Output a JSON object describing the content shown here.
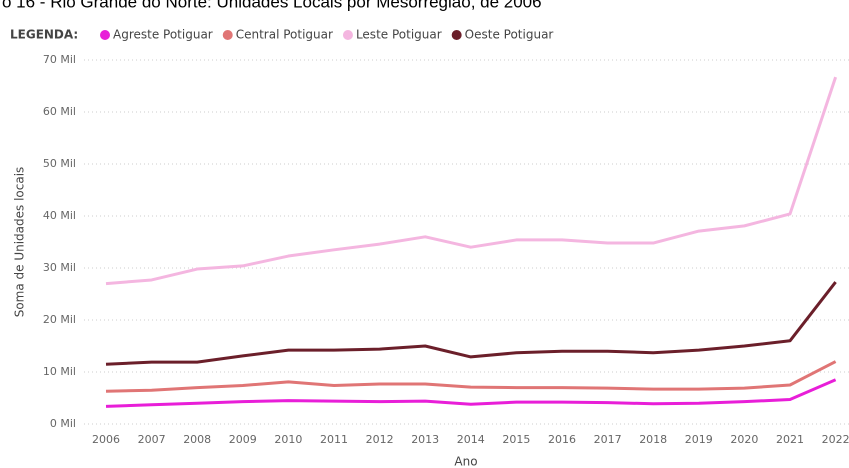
{
  "chart_data": {
    "type": "line",
    "title": "o 16 - Rio Grande do Norte: Unidades Locais por Mesorregião, de 2006",
    "legend_title": "LEGENDA:",
    "x_label": "Ano",
    "y_label": "Soma de Unidades locais",
    "categories": [
      "2006",
      "2007",
      "2008",
      "2009",
      "2010",
      "2011",
      "2012",
      "2013",
      "2014",
      "2015",
      "2016",
      "2017",
      "2018",
      "2019",
      "2020",
      "2021",
      "2022"
    ],
    "series": [
      {
        "name": "Agreste Potiguar",
        "color": "#e81ed8",
        "values": [
          3400,
          3700,
          4000,
          4300,
          4500,
          4400,
          4300,
          4400,
          3800,
          4200,
          4200,
          4100,
          3900,
          4000,
          4300,
          4700,
          8500
        ]
      },
      {
        "name": "Central Potiguar",
        "color": "#e07575",
        "values": [
          6300,
          6500,
          7000,
          7400,
          8100,
          7400,
          7700,
          7700,
          7100,
          7000,
          7000,
          6900,
          6700,
          6700,
          6900,
          7500,
          12000
        ]
      },
      {
        "name": "Leste Potiguar",
        "color": "#f4b6e0",
        "values": [
          27000,
          27700,
          29800,
          30400,
          32300,
          33500,
          34600,
          36000,
          34000,
          35400,
          35400,
          34800,
          34800,
          37100,
          38100,
          40400,
          66700
        ]
      },
      {
        "name": "Oeste Potiguar",
        "color": "#6b1f2a",
        "values": [
          11500,
          11900,
          11900,
          13100,
          14200,
          14200,
          14400,
          15000,
          12900,
          13700,
          14000,
          14000,
          13700,
          14200,
          15000,
          16000,
          27300
        ]
      }
    ],
    "ylim": [
      0,
      70000
    ],
    "yticks": [
      {
        "value": 0,
        "label": "0 Mil"
      },
      {
        "value": 10000,
        "label": "10 Mil"
      },
      {
        "value": 20000,
        "label": "20 Mil"
      },
      {
        "value": 30000,
        "label": "30 Mil"
      },
      {
        "value": 40000,
        "label": "40 Mil"
      },
      {
        "value": 50000,
        "label": "50 Mil"
      },
      {
        "value": 60000,
        "label": "60 Mil"
      },
      {
        "value": 70000,
        "label": "70 Mil"
      }
    ],
    "grid": true
  }
}
